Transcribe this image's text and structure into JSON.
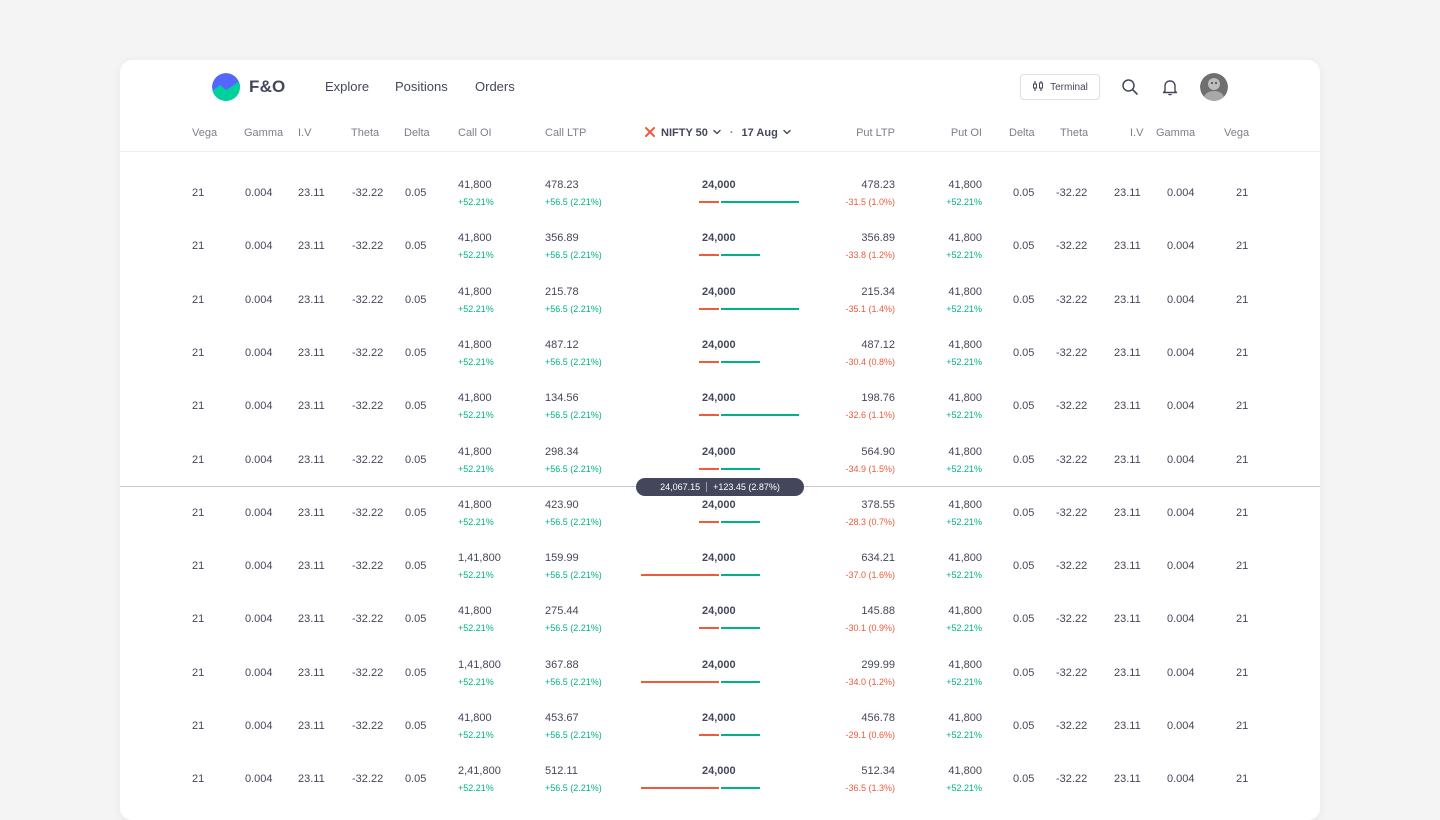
{
  "app": {
    "brand": "F&O"
  },
  "nav": {
    "links": [
      "Explore",
      "Positions",
      "Orders"
    ],
    "terminal_label": "Terminal"
  },
  "icons": {
    "search": "search-icon",
    "bell": "bell-icon",
    "terminal": "terminal-icon"
  },
  "colors": {
    "green": "#00b386",
    "red": "#eb5b3c",
    "text": "#44475b",
    "muted": "#7c7e8c"
  },
  "header": {
    "left_cols": [
      "Vega",
      "Gamma",
      "I.V",
      "Theta",
      "Delta",
      "Call OI",
      "Call LTP"
    ],
    "index_name": "NIFTY 50",
    "expiry": "17 Aug",
    "separator": "·",
    "right_cols": [
      "Put LTP",
      "Put OI",
      "Delta",
      "Theta",
      "I.V",
      "Gamma",
      "Vega"
    ]
  },
  "spot": {
    "price": "24,067.15",
    "change": "+123.45 (2.87%)"
  },
  "rows": [
    {
      "vega": "21",
      "gamma": "0.004",
      "iv": "23.11",
      "theta": "-32.22",
      "delta": "0.05",
      "call_oi": "41,800",
      "call_oi_chg": "+52.21%",
      "call_ltp": "478.23",
      "call_ltp_chg": "+56.5 (2.21%)",
      "strike": "24,000",
      "put_ltp": "478.23",
      "put_ltp_chg": "-31.5 (1.0%)",
      "put_oi": "41,800",
      "put_oi_chg": "+52.21%",
      "r_delta": "0.05",
      "r_theta": "-32.22",
      "r_iv": "23.11",
      "r_gamma": "0.004",
      "r_vega": "21",
      "put_bar": 0.25,
      "call_bar": 1.0
    },
    {
      "vega": "21",
      "gamma": "0.004",
      "iv": "23.11",
      "theta": "-32.22",
      "delta": "0.05",
      "call_oi": "41,800",
      "call_oi_chg": "+52.21%",
      "call_ltp": "356.89",
      "call_ltp_chg": "+56.5 (2.21%)",
      "strike": "24,000",
      "put_ltp": "356.89",
      "put_ltp_chg": "-33.8 (1.2%)",
      "put_oi": "41,800",
      "put_oi_chg": "+52.21%",
      "r_delta": "0.05",
      "r_theta": "-32.22",
      "r_iv": "23.11",
      "r_gamma": "0.004",
      "r_vega": "21",
      "put_bar": 0.25,
      "call_bar": 0.5
    },
    {
      "vega": "21",
      "gamma": "0.004",
      "iv": "23.11",
      "theta": "-32.22",
      "delta": "0.05",
      "call_oi": "41,800",
      "call_oi_chg": "+52.21%",
      "call_ltp": "215.78",
      "call_ltp_chg": "+56.5 (2.21%)",
      "strike": "24,000",
      "put_ltp": "215.34",
      "put_ltp_chg": "-35.1 (1.4%)",
      "put_oi": "41,800",
      "put_oi_chg": "+52.21%",
      "r_delta": "0.05",
      "r_theta": "-32.22",
      "r_iv": "23.11",
      "r_gamma": "0.004",
      "r_vega": "21",
      "put_bar": 0.25,
      "call_bar": 1.0
    },
    {
      "vega": "21",
      "gamma": "0.004",
      "iv": "23.11",
      "theta": "-32.22",
      "delta": "0.05",
      "call_oi": "41,800",
      "call_oi_chg": "+52.21%",
      "call_ltp": "487.12",
      "call_ltp_chg": "+56.5 (2.21%)",
      "strike": "24,000",
      "put_ltp": "487.12",
      "put_ltp_chg": "-30.4 (0.8%)",
      "put_oi": "41,800",
      "put_oi_chg": "+52.21%",
      "r_delta": "0.05",
      "r_theta": "-32.22",
      "r_iv": "23.11",
      "r_gamma": "0.004",
      "r_vega": "21",
      "put_bar": 0.25,
      "call_bar": 0.5
    },
    {
      "vega": "21",
      "gamma": "0.004",
      "iv": "23.11",
      "theta": "-32.22",
      "delta": "0.05",
      "call_oi": "41,800",
      "call_oi_chg": "+52.21%",
      "call_ltp": "134.56",
      "call_ltp_chg": "+56.5 (2.21%)",
      "strike": "24,000",
      "put_ltp": "198.76",
      "put_ltp_chg": "-32.6 (1.1%)",
      "put_oi": "41,800",
      "put_oi_chg": "+52.21%",
      "r_delta": "0.05",
      "r_theta": "-32.22",
      "r_iv": "23.11",
      "r_gamma": "0.004",
      "r_vega": "21",
      "put_bar": 0.25,
      "call_bar": 1.0
    },
    {
      "vega": "21",
      "gamma": "0.004",
      "iv": "23.11",
      "theta": "-32.22",
      "delta": "0.05",
      "call_oi": "41,800",
      "call_oi_chg": "+52.21%",
      "call_ltp": "298.34",
      "call_ltp_chg": "+56.5 (2.21%)",
      "strike": "24,000",
      "put_ltp": "564.90",
      "put_ltp_chg": "-34.9 (1.5%)",
      "put_oi": "41,800",
      "put_oi_chg": "+52.21%",
      "r_delta": "0.05",
      "r_theta": "-32.22",
      "r_iv": "23.11",
      "r_gamma": "0.004",
      "r_vega": "21",
      "put_bar": 0.25,
      "call_bar": 0.5
    },
    {
      "vega": "21",
      "gamma": "0.004",
      "iv": "23.11",
      "theta": "-32.22",
      "delta": "0.05",
      "call_oi": "41,800",
      "call_oi_chg": "+52.21%",
      "call_ltp": "423.90",
      "call_ltp_chg": "+56.5 (2.21%)",
      "strike": "24,000",
      "put_ltp": "378.55",
      "put_ltp_chg": "-28.3 (0.7%)",
      "put_oi": "41,800",
      "put_oi_chg": "+52.21%",
      "r_delta": "0.05",
      "r_theta": "-32.22",
      "r_iv": "23.11",
      "r_gamma": "0.004",
      "r_vega": "21",
      "put_bar": 0.25,
      "call_bar": 0.5
    },
    {
      "vega": "21",
      "gamma": "0.004",
      "iv": "23.11",
      "theta": "-32.22",
      "delta": "0.05",
      "call_oi": "1,41,800",
      "call_oi_chg": "+52.21%",
      "call_ltp": "159.99",
      "call_ltp_chg": "+56.5 (2.21%)",
      "strike": "24,000",
      "put_ltp": "634.21",
      "put_ltp_chg": "-37.0 (1.6%)",
      "put_oi": "41,800",
      "put_oi_chg": "+52.21%",
      "r_delta": "0.05",
      "r_theta": "-32.22",
      "r_iv": "23.11",
      "r_gamma": "0.004",
      "r_vega": "21",
      "put_bar": 1.0,
      "call_bar": 0.5
    },
    {
      "vega": "21",
      "gamma": "0.004",
      "iv": "23.11",
      "theta": "-32.22",
      "delta": "0.05",
      "call_oi": "41,800",
      "call_oi_chg": "+52.21%",
      "call_ltp": "275.44",
      "call_ltp_chg": "+56.5 (2.21%)",
      "strike": "24,000",
      "put_ltp": "145.88",
      "put_ltp_chg": "-30.1 (0.9%)",
      "put_oi": "41,800",
      "put_oi_chg": "+52.21%",
      "r_delta": "0.05",
      "r_theta": "-32.22",
      "r_iv": "23.11",
      "r_gamma": "0.004",
      "r_vega": "21",
      "put_bar": 0.25,
      "call_bar": 0.5
    },
    {
      "vega": "21",
      "gamma": "0.004",
      "iv": "23.11",
      "theta": "-32.22",
      "delta": "0.05",
      "call_oi": "1,41,800",
      "call_oi_chg": "+52.21%",
      "call_ltp": "367.88",
      "call_ltp_chg": "+56.5 (2.21%)",
      "strike": "24,000",
      "put_ltp": "299.99",
      "put_ltp_chg": "-34.0 (1.2%)",
      "put_oi": "41,800",
      "put_oi_chg": "+52.21%",
      "r_delta": "0.05",
      "r_theta": "-32.22",
      "r_iv": "23.11",
      "r_gamma": "0.004",
      "r_vega": "21",
      "put_bar": 1.0,
      "call_bar": 0.5
    },
    {
      "vega": "21",
      "gamma": "0.004",
      "iv": "23.11",
      "theta": "-32.22",
      "delta": "0.05",
      "call_oi": "41,800",
      "call_oi_chg": "+52.21%",
      "call_ltp": "453.67",
      "call_ltp_chg": "+56.5 (2.21%)",
      "strike": "24,000",
      "put_ltp": "456.78",
      "put_ltp_chg": "-29.1 (0.6%)",
      "put_oi": "41,800",
      "put_oi_chg": "+52.21%",
      "r_delta": "0.05",
      "r_theta": "-32.22",
      "r_iv": "23.11",
      "r_gamma": "0.004",
      "r_vega": "21",
      "put_bar": 0.25,
      "call_bar": 0.5
    },
    {
      "vega": "21",
      "gamma": "0.004",
      "iv": "23.11",
      "theta": "-32.22",
      "delta": "0.05",
      "call_oi": "2,41,800",
      "call_oi_chg": "+52.21%",
      "call_ltp": "512.11",
      "call_ltp_chg": "+56.5 (2.21%)",
      "strike": "24,000",
      "put_ltp": "512.34",
      "put_ltp_chg": "-36.5 (1.3%)",
      "put_oi": "41,800",
      "put_oi_chg": "+52.21%",
      "r_delta": "0.05",
      "r_theta": "-32.22",
      "r_iv": "23.11",
      "r_gamma": "0.004",
      "r_vega": "21",
      "put_bar": 1.0,
      "call_bar": 0.5
    }
  ]
}
